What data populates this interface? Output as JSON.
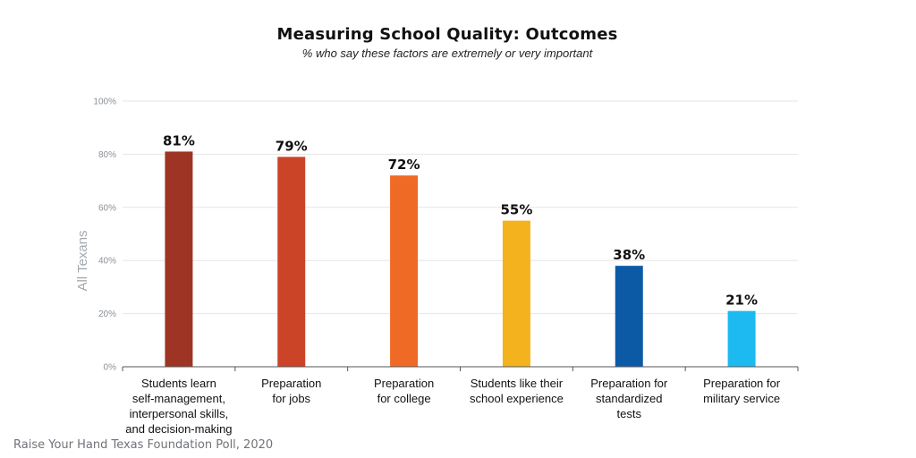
{
  "chart_data": {
    "type": "bar",
    "title": "Measuring School Quality: Outcomes",
    "subtitle": "% who say these factors are extremely or very important",
    "ylabel": "All Texans",
    "xlabel": "",
    "ylim": [
      0,
      100
    ],
    "yticks": [
      "0%",
      "20%",
      "40%",
      "60%",
      "80%",
      "100%"
    ],
    "grid": true,
    "categories": [
      [
        "Students learn",
        "self-management,",
        "interpersonal skills,",
        "and decision-making"
      ],
      [
        "Preparation",
        "for jobs"
      ],
      [
        "Preparation",
        "for college"
      ],
      [
        "Students like their",
        "school experience"
      ],
      [
        "Preparation for",
        "standardized",
        "tests"
      ],
      [
        "Preparation for",
        "military service"
      ]
    ],
    "values": [
      81,
      79,
      72,
      55,
      38,
      21
    ],
    "value_labels": [
      "81%",
      "79%",
      "72%",
      "55%",
      "38%",
      "21%"
    ],
    "colors": [
      "#9e3423",
      "#cc4428",
      "#ef6a24",
      "#f5b21f",
      "#0c5aa6",
      "#1cbaf0"
    ]
  },
  "source": "Raise Your Hand Texas Foundation Poll, 2020"
}
